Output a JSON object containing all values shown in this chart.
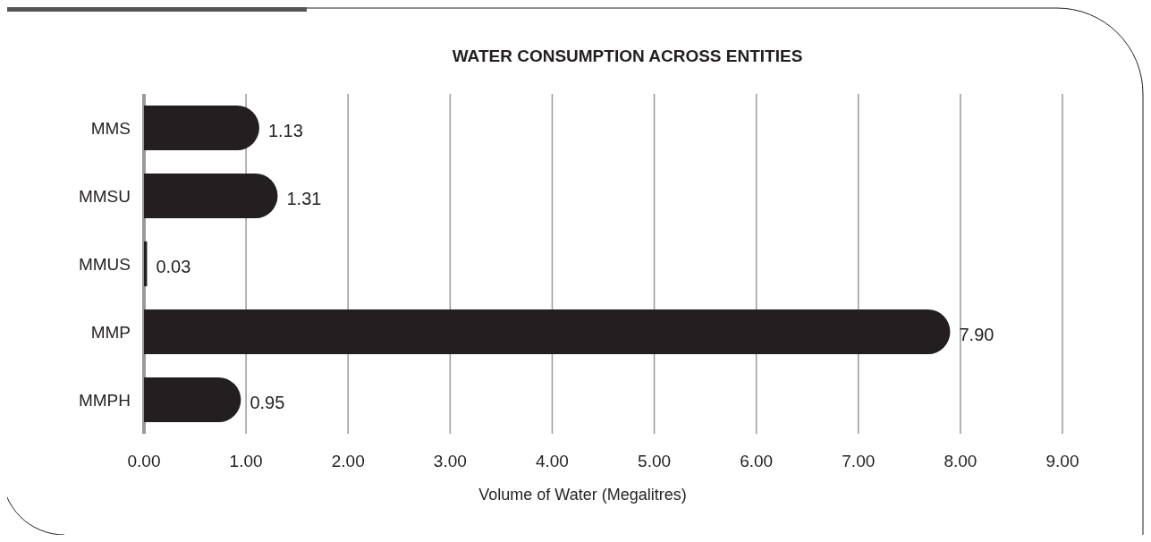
{
  "chart_data": {
    "type": "bar",
    "orientation": "horizontal",
    "title": "WATER CONSUMPTION ACROSS ENTITIES",
    "xlabel": "Volume of Water (Megalitres)",
    "categories": [
      "MMS",
      "MMSU",
      "MMUS",
      "MMP",
      "MMPH"
    ],
    "values": [
      1.13,
      1.31,
      0.03,
      7.9,
      0.95
    ],
    "value_labels": [
      "1.13",
      "1.31",
      "0.03",
      "7.90",
      "0.95"
    ],
    "color": "#231f20",
    "xlim": [
      0,
      9
    ],
    "xticks": [
      {
        "value": 0,
        "label": "0.00"
      },
      {
        "value": 1,
        "label": "1.00"
      },
      {
        "value": 2,
        "label": "2.00"
      },
      {
        "value": 3,
        "label": "3.00"
      },
      {
        "value": 4,
        "label": "4.00"
      },
      {
        "value": 5,
        "label": "5.00"
      },
      {
        "value": 6,
        "label": "6.00"
      },
      {
        "value": 7,
        "label": "7.00"
      },
      {
        "value": 8,
        "label": "8.00"
      },
      {
        "value": 9,
        "label": "9.00"
      }
    ],
    "grid": "x"
  }
}
